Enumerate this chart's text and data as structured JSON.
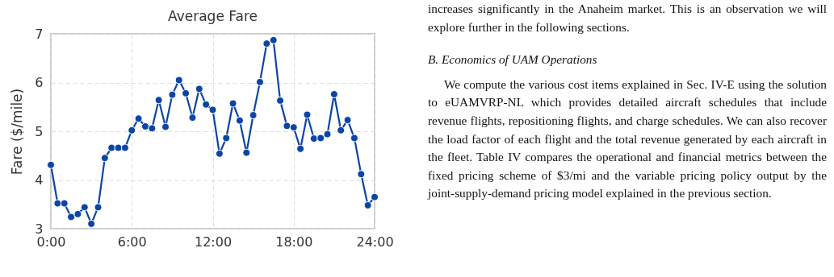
{
  "chart_data": {
    "type": "line",
    "title": "Average Fare",
    "ylabel": "Fare ($/mile)",
    "x": [
      0,
      0.5,
      1,
      1.5,
      2,
      2.5,
      3,
      3.5,
      4,
      4.5,
      5,
      5.5,
      6,
      6.5,
      7,
      7.5,
      8,
      8.5,
      9,
      9.5,
      10,
      10.5,
      11,
      11.5,
      12,
      12.5,
      13,
      13.5,
      14,
      14.5,
      15,
      15.5,
      16,
      16.5,
      17,
      17.5,
      18,
      18.5,
      19,
      19.5,
      20,
      20.5,
      21,
      21.5,
      22,
      22.5,
      23,
      23.5,
      24
    ],
    "series": [
      {
        "color": "#0b45a5",
        "values": [
          4.31,
          3.52,
          3.52,
          3.24,
          3.3,
          3.44,
          3.1,
          3.44,
          4.45,
          4.66,
          4.66,
          4.66,
          5.02,
          5.26,
          5.1,
          5.06,
          5.64,
          5.09,
          5.75,
          6.05,
          5.78,
          5.28,
          5.87,
          5.55,
          5.44,
          4.54,
          4.86,
          5.57,
          5.22,
          4.56,
          5.33,
          6.01,
          6.8,
          6.87,
          5.63,
          5.11,
          5.08,
          4.64,
          5.34,
          4.85,
          4.86,
          4.94,
          5.76,
          5.02,
          5.23,
          4.86,
          4.12,
          3.48,
          3.65
        ]
      }
    ],
    "xlim": [
      0,
      24
    ],
    "xticks": [
      {
        "value": 0,
        "label": "0:00"
      },
      {
        "value": 6,
        "label": "6:00"
      },
      {
        "value": 12,
        "label": "12:00"
      },
      {
        "value": 18,
        "label": "18:00"
      },
      {
        "value": 24,
        "label": "24:00"
      }
    ],
    "ylim": [
      3,
      7
    ],
    "yticks": [
      3,
      4,
      5,
      6,
      7
    ],
    "grid": true,
    "marker": "circle",
    "line_style": "solid",
    "annotations": [
      "increases significantly in the Anaheim market. This is an observation we will explore further in the following sections.",
      "B. Economics of UAM Operations",
      "We compute the various cost items explained in Sec. IV-E using the solution to eUAMVRP-NL which provides detailed aircraft schedules that include revenue flights, repositioning flights, and charge schedules. We can also recover the load factor of each flight and the total revenue generated by each aircraft in the fleet. Table IV compares the operational and financial metrics between the fixed pricing scheme of $3/mi and the variable pricing policy output by the joint-supply-demand pricing model explained in the previous section."
    ]
  }
}
